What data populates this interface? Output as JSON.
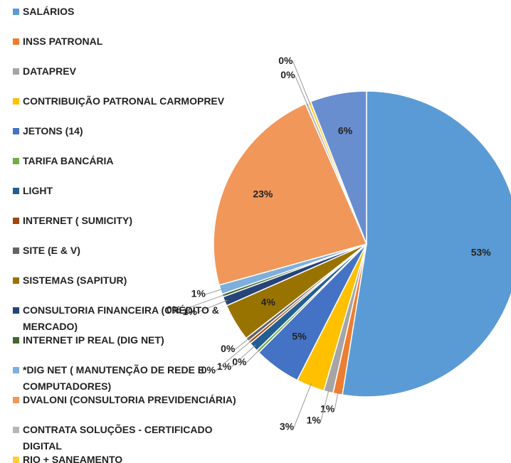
{
  "chart_data": {
    "type": "pie",
    "categories": [
      "SALÁRIOS",
      "INSS PATRONAL",
      "DATAPREV",
      "CONTRIBUIÇÃO PATRONAL CARMOPREV",
      "JETONS (14)",
      "TARIFA BANCÁRIA",
      "LIGHT",
      "INTERNET ( SUMICITY)",
      "SITE (E & V)",
      "SISTEMAS (SAPITUR)",
      "CONSULTORIA FINANCEIRA (CRÉDITO & MERCADO)",
      "INTERNET IP REAL (DIG NET)",
      "*DIG NET ( MANUTENÇÃO DE REDE E COMPUTADORES)",
      "DVALONI (CONSULTORIA PREVIDENCIÁRIA)",
      "CONTRATA SOLUÇÕES - CERTIFICADO DIGITAL",
      "RIO + SANEAMENTO",
      null
    ],
    "values": [
      53,
      1,
      1,
      3,
      5,
      0.3,
      1,
      0.3,
      0.4,
      4,
      1,
      0.3,
      1,
      23,
      0.3,
      0.3,
      6
    ],
    "value_labels": [
      "53%",
      "1%",
      "1%",
      "3%",
      "5%",
      "0%",
      "1%",
      "0%",
      "0%",
      "4%",
      "1%",
      "0%",
      "1%",
      "23%",
      "0%",
      "0%",
      "6%"
    ],
    "colors": [
      "#5b9bd5",
      "#ed7d31",
      "#a5a5a5",
      "#ffc000",
      "#4472c4",
      "#70ad47",
      "#255e91",
      "#9e480e",
      "#636363",
      "#997300",
      "#264478",
      "#43682b",
      "#7cafdd",
      "#f1975a",
      "#b7b7b7",
      "#ffcd33",
      "#698ed0"
    ],
    "legend": "left"
  }
}
